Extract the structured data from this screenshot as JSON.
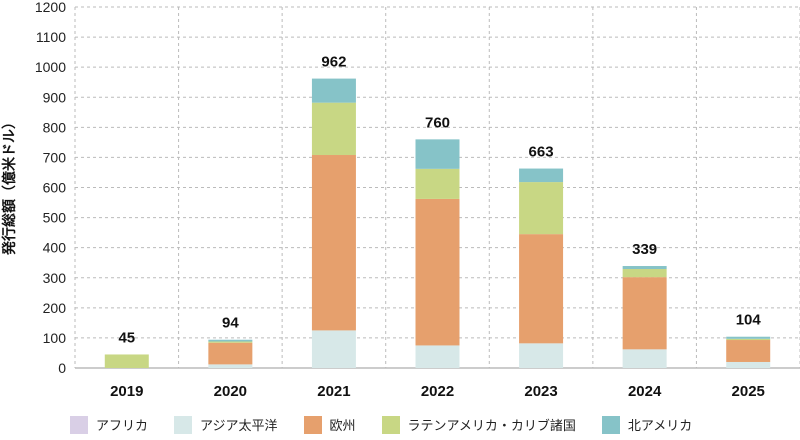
{
  "chart_data": {
    "type": "bar",
    "stacked": true,
    "ylabel": "発行総額（億米ドル）",
    "ylim": [
      0,
      1200
    ],
    "yticks": [
      0,
      100,
      200,
      300,
      400,
      500,
      600,
      700,
      800,
      900,
      1000,
      1100,
      1200
    ],
    "categories": [
      "2019",
      "2020",
      "2021",
      "2022",
      "2023",
      "2024",
      "2025"
    ],
    "totals": [
      45,
      94,
      962,
      760,
      663,
      339,
      104
    ],
    "series": [
      {
        "name": "アフリカ",
        "color": "#d9cfe6",
        "values": [
          0,
          0,
          0,
          0,
          0,
          0,
          0
        ]
      },
      {
        "name": "アジア太平洋",
        "color": "#d7e8e8",
        "values": [
          0,
          12,
          125,
          75,
          82,
          62,
          20
        ]
      },
      {
        "name": "欧州",
        "color": "#e6a06d",
        "values": [
          0,
          72,
          583,
          487,
          363,
          240,
          73
        ]
      },
      {
        "name": "ラテンアメリカ・カリブ諸国",
        "color": "#c8d784",
        "values": [
          45,
          4,
          174,
          100,
          173,
          27,
          4
        ]
      },
      {
        "name": "北アメリカ",
        "color": "#86c3c8",
        "values": [
          0,
          6,
          80,
          98,
          45,
          10,
          7
        ]
      }
    ],
    "grid": true,
    "legend": "bottom"
  }
}
